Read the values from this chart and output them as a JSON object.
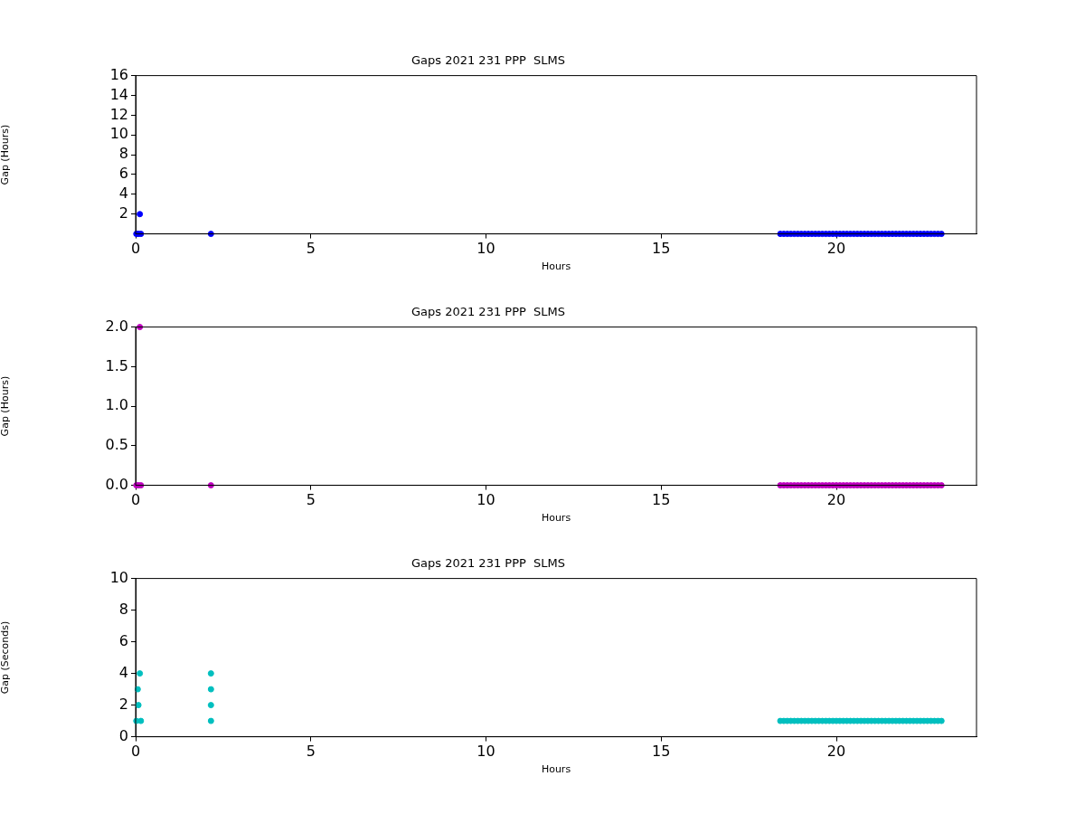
{
  "chart_data": [
    {
      "type": "scatter",
      "title": "Gaps 2021 231 PPP  SLMS",
      "xlabel": "Hours",
      "ylabel": "Gap (Hours)",
      "xlim": [
        0,
        24
      ],
      "xticks": [
        0,
        5,
        10,
        15,
        20
      ],
      "ylim": [
        0,
        16
      ],
      "yticks": [
        2,
        4,
        6,
        8,
        10,
        12,
        14,
        16
      ],
      "grid": false,
      "legend": false,
      "marker": "circle",
      "series": [
        {
          "color": "#0000ff",
          "x": [
            0.02,
            0.08,
            0.15,
            0.12,
            2.15,
            18.4,
            18.5,
            18.6,
            18.7,
            18.8,
            18.9,
            19.0,
            19.1,
            19.2,
            19.3,
            19.4,
            19.5,
            19.6,
            19.7,
            19.8,
            19.9,
            20.0,
            20.1,
            20.2,
            20.3,
            20.4,
            20.5,
            20.6,
            20.7,
            20.8,
            20.9,
            21.0,
            21.1,
            21.2,
            21.3,
            21.4,
            21.5,
            21.6,
            21.7,
            21.8,
            21.9,
            22.0,
            22.1,
            22.2,
            22.3,
            22.4,
            22.5,
            22.6,
            22.7,
            22.8,
            22.9,
            23.0
          ],
          "values": [
            0,
            0,
            0,
            2,
            0,
            0,
            0,
            0,
            0,
            0,
            0,
            0,
            0,
            0,
            0,
            0,
            0,
            0,
            0,
            0,
            0,
            0,
            0,
            0,
            0,
            0,
            0,
            0,
            0,
            0,
            0,
            0,
            0,
            0,
            0,
            0,
            0,
            0,
            0,
            0,
            0,
            0,
            0,
            0,
            0,
            0,
            0,
            0,
            0,
            0,
            0,
            0
          ]
        }
      ]
    },
    {
      "type": "scatter",
      "title": "Gaps 2021 231 PPP  SLMS",
      "xlabel": "Hours",
      "ylabel": "Gap (Hours)",
      "xlim": [
        0,
        24
      ],
      "xticks": [
        0,
        5,
        10,
        15,
        20
      ],
      "ylim": [
        0,
        2
      ],
      "yticks": [
        {
          "value": 0,
          "label": "0.0"
        },
        {
          "value": 0.5,
          "label": "0.5"
        },
        {
          "value": 1,
          "label": "1.0"
        },
        {
          "value": 1.5,
          "label": "1.5"
        },
        {
          "value": 2,
          "label": "2.0"
        }
      ],
      "grid": false,
      "legend": false,
      "marker": "circle",
      "series": [
        {
          "color": "#bf00bf",
          "x": [
            0.02,
            0.08,
            0.15,
            0.12,
            2.15,
            18.4,
            18.5,
            18.6,
            18.7,
            18.8,
            18.9,
            19.0,
            19.1,
            19.2,
            19.3,
            19.4,
            19.5,
            19.6,
            19.7,
            19.8,
            19.9,
            20.0,
            20.1,
            20.2,
            20.3,
            20.4,
            20.5,
            20.6,
            20.7,
            20.8,
            20.9,
            21.0,
            21.1,
            21.2,
            21.3,
            21.4,
            21.5,
            21.6,
            21.7,
            21.8,
            21.9,
            22.0,
            22.1,
            22.2,
            22.3,
            22.4,
            22.5,
            22.6,
            22.7,
            22.8,
            22.9,
            23.0
          ],
          "values": [
            0,
            0,
            0,
            2,
            0,
            0,
            0,
            0,
            0,
            0,
            0,
            0,
            0,
            0,
            0,
            0,
            0,
            0,
            0,
            0,
            0,
            0,
            0,
            0,
            0,
            0,
            0,
            0,
            0,
            0,
            0,
            0,
            0,
            0,
            0,
            0,
            0,
            0,
            0,
            0,
            0,
            0,
            0,
            0,
            0,
            0,
            0,
            0,
            0,
            0,
            0,
            0
          ]
        }
      ]
    },
    {
      "type": "scatter",
      "title": "Gaps 2021 231 PPP  SLMS",
      "xlabel": "Hours",
      "ylabel": "Gap (Seconds)",
      "xlim": [
        0,
        24
      ],
      "xticks": [
        0,
        5,
        10,
        15,
        20
      ],
      "ylim": [
        0,
        10
      ],
      "yticks": [
        0,
        2,
        4,
        6,
        8,
        10
      ],
      "grid": false,
      "legend": false,
      "marker": "circle",
      "series": [
        {
          "color": "#00bfbf",
          "x": [
            0.02,
            0.15,
            0.08,
            0.06,
            0.12,
            2.15,
            2.15,
            2.15,
            2.15,
            18.4,
            18.5,
            18.6,
            18.7,
            18.8,
            18.9,
            19.0,
            19.1,
            19.2,
            19.3,
            19.4,
            19.5,
            19.6,
            19.7,
            19.8,
            19.9,
            20.0,
            20.1,
            20.2,
            20.3,
            20.4,
            20.5,
            20.6,
            20.7,
            20.8,
            20.9,
            21.0,
            21.1,
            21.2,
            21.3,
            21.4,
            21.5,
            21.6,
            21.7,
            21.8,
            21.9,
            22.0,
            22.1,
            22.2,
            22.3,
            22.4,
            22.5,
            22.6,
            22.7,
            22.8,
            22.9,
            23.0
          ],
          "values": [
            1,
            1,
            2,
            3,
            4,
            1,
            2,
            3,
            4,
            1,
            1,
            1,
            1,
            1,
            1,
            1,
            1,
            1,
            1,
            1,
            1,
            1,
            1,
            1,
            1,
            1,
            1,
            1,
            1,
            1,
            1,
            1,
            1,
            1,
            1,
            1,
            1,
            1,
            1,
            1,
            1,
            1,
            1,
            1,
            1,
            1,
            1,
            1,
            1,
            1,
            1,
            1,
            1,
            1,
            1,
            1
          ]
        }
      ]
    }
  ]
}
